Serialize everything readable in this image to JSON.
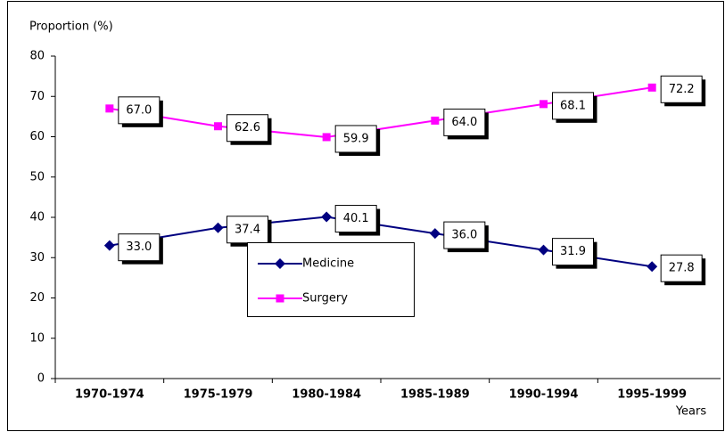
{
  "chart_data": {
    "type": "line",
    "y_label": "Proportion (%)",
    "x_label": "Years",
    "categories": [
      "1970-1974",
      "1975-1979",
      "1980-1984",
      "1985-1989",
      "1990-1994",
      "1995-1999"
    ],
    "series": [
      {
        "name": "Medicine",
        "color": "#000080",
        "marker": "diamond",
        "values": [
          33.0,
          37.4,
          40.1,
          36.0,
          31.9,
          27.8
        ],
        "value_labels": [
          "33.0",
          "37.4",
          "40.1",
          "36.0",
          "31.9",
          "27.8"
        ]
      },
      {
        "name": "Surgery",
        "color": "#ff00ff",
        "marker": "square",
        "values": [
          67.0,
          62.6,
          59.9,
          64.0,
          68.1,
          72.2
        ],
        "value_labels": [
          "67.0",
          "62.6",
          "59.9",
          "64.0",
          "68.1",
          "72.2"
        ]
      }
    ],
    "ylim": [
      0,
      80
    ],
    "yticks": [
      0,
      10,
      20,
      30,
      40,
      50,
      60,
      70,
      80
    ]
  }
}
